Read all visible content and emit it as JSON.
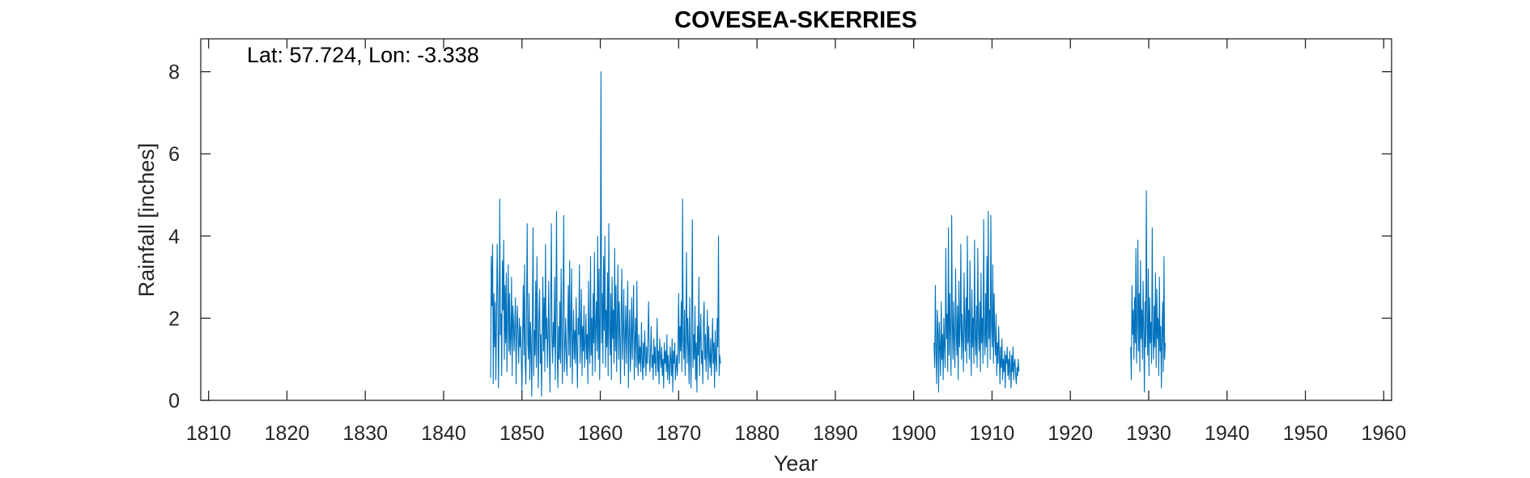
{
  "chart_data": {
    "type": "line",
    "title": "COVESEA-SKERRIES",
    "annotation": "Lat: 57.724, Lon: -3.338",
    "xlabel": "Year",
    "ylabel": "Rainfall [inches]",
    "xlim": [
      1809,
      1961
    ],
    "ylim": [
      0,
      8.8
    ],
    "xticks": [
      1810,
      1820,
      1830,
      1840,
      1850,
      1860,
      1870,
      1880,
      1890,
      1900,
      1910,
      1920,
      1930,
      1940,
      1950,
      1960
    ],
    "yticks": [
      0,
      2,
      4,
      6,
      8
    ],
    "grid": false,
    "legend": "none",
    "series": [
      {
        "color": "#0072BD",
        "segments": [
          {
            "x_start": 1846.0,
            "x_step": 0.0833333,
            "y": [
              0.55,
              3.5,
              2.3,
              3.8,
              0.4,
              2.6,
              1.3,
              2.4,
              0.5,
              1.9,
              3.8,
              2.5,
              0.3,
              1.8,
              4.9,
              1.6,
              2.1,
              0.6,
              3.4,
              2.2,
              3.9,
              1.0,
              2.8,
              1.4,
              3.1,
              0.7,
              2.0,
              3.3,
              1.2,
              2.6,
              1.1,
              1.5,
              3.0,
              0.6,
              2.3,
              1.9,
              1.2,
              1.9,
              2.5,
              0.4,
              1.7,
              2.3,
              1.5,
              0.9,
              2.0,
              1.3,
              1.8,
              1.0,
              0.2,
              1.6,
              2.8,
              1.1,
              3.3,
              0.9,
              0.4,
              2.2,
              4.3,
              1.4,
              1.0,
              2.6,
              0.5,
              1.9,
              1.3,
              0.1,
              2.3,
              4.2,
              0.6,
              1.7,
              1.1,
              2.9,
              0.8,
              3.5,
              1.5,
              0.3,
              2.0,
              2.7,
              0.9,
              1.6,
              0.1,
              1.4,
              3.0,
              1.2,
              2.5,
              0.7,
              3.8,
              1.5,
              2.0,
              0.8,
              1.6,
              2.9,
              1.1,
              0.2,
              2.1,
              4.3,
              1.6,
              0.9,
              1.9,
              1.3,
              3.0,
              0.5,
              2.2,
              4.6,
              1.2,
              0.3,
              1.8,
              1.0,
              2.4,
              0.9,
              3.2,
              1.5,
              0.4,
              2.6,
              4.5,
              0.7,
              1.3,
              2.0,
              1.0,
              0.6,
              1.7,
              2.8,
              1.1,
              3.4,
              0.8,
              1.9,
              3.2,
              0.4,
              1.4,
              2.2,
              1.0,
              1.7,
              0.9,
              2.5,
              1.3,
              0.3,
              2.0,
              1.6,
              3.3,
              0.9,
              1.5,
              2.7,
              0.6,
              1.8,
              1.2,
              2.3,
              0.8,
              1.4,
              2.1,
              1.0,
              1.6,
              0.4,
              2.9,
              1.3,
              0.9,
              3.5,
              1.1,
              2.0,
              0.6,
              2.6,
              1.4,
              3.6,
              0.7,
              1.8,
              2.4,
              1.2,
              4.0,
              1.0,
              3.2,
              0.5,
              2.1,
              8.0,
              1.4,
              2.6,
              0.9,
              3.5,
              1.7,
              4.0,
              0.8,
              2.2,
              1.3,
              3.1,
              0.6,
              4.3,
              1.8,
              1.1,
              2.6,
              0.5,
              3.0,
              1.5,
              2.2,
              0.9,
              3.7,
              1.2,
              2.8,
              0.7,
              1.9,
              3.3,
              1.0,
              2.4,
              1.5,
              0.4,
              2.1,
              3.2,
              1.0,
              1.7,
              2.7,
              0.6,
              1.5,
              2.3,
              0.9,
              1.9,
              2.9,
              0.3,
              1.6,
              2.2,
              0.7,
              1.3,
              2.5,
              1.0,
              1.8,
              2.8,
              0.5,
              1.4,
              2.0,
              0.8,
              2.9,
              1.1,
              0.6,
              1.6,
              0.9,
              1.3,
              0.7,
              1.9,
              1.0,
              0.5,
              1.4,
              0.8,
              1.7,
              1.1,
              0.6,
              1.3,
              0.9,
              1.6,
              2.4,
              1.0,
              0.7,
              1.2,
              1.8,
              0.8,
              1.1,
              0.5,
              1.5,
              0.9,
              1.3,
              0.6,
              1.0,
              2.0,
              0.7,
              1.2,
              0.4,
              1.5,
              1.1,
              0.8,
              1.3,
              0.6,
              1.0,
              0.3,
              1.4,
              0.9,
              1.2,
              0.7,
              1.6,
              0.5,
              1.1,
              0.8,
              0.4,
              1.3,
              1.0,
              0.6,
              1.5,
              0.2,
              1.2,
              0.9,
              1.4,
              0.5,
              0.8,
              1.1,
              0.6,
              1.3,
              2.6,
              0.9,
              1.8,
              1.2,
              2.4,
              0.7,
              4.9,
              1.5,
              1.0,
              2.2,
              0.6,
              1.7,
              3.6,
              0.9,
              2.0,
              1.3,
              0.4,
              2.5,
              1.1,
              0.3,
              1.9,
              4.4,
              0.8,
              1.6,
              1.0,
              2.3,
              0.5,
              1.4,
              0.2,
              1.8,
              1.1,
              3.0,
              0.6,
              1.5,
              2.1,
              0.9,
              1.2,
              0.4,
              1.9,
              2.4,
              1.0,
              1.6,
              0.7,
              1.3,
              2.2,
              0.5,
              1.8,
              1.1,
              0.8,
              1.5,
              0.6,
              1.2,
              2.0,
              0.9,
              1.4,
              0.3,
              1.7,
              1.0,
              0.7,
              2.0,
              1.3,
              4.0,
              0.6,
              1.1,
              0.9
            ]
          },
          {
            "x_start": 1902.6,
            "x_step": 0.0833333,
            "y": [
              1.4,
              0.8,
              2.8,
              1.2,
              0.4,
              2.2,
              1.7,
              0.2,
              1.9,
              1.3,
              0.6,
              2.4,
              1.0,
              1.6,
              0.5,
              2.0,
              1.3,
              0.8,
              3.7,
              1.5,
              2.1,
              0.7,
              4.2,
              1.1,
              2.6,
              1.6,
              0.6,
              4.5,
              1.9,
              1.0,
              2.4,
              1.4,
              0.8,
              3.2,
              1.7,
              1.1,
              2.3,
              0.5,
              2.9,
              1.3,
              1.8,
              3.8,
              1.0,
              2.1,
              1.5,
              0.7,
              3.1,
              1.8,
              1.2,
              2.5,
              0.9,
              4.0,
              1.4,
              2.2,
              1.0,
              3.4,
              1.6,
              0.6,
              2.7,
              1.3,
              2.0,
              0.9,
              3.9,
              1.5,
              1.1,
              2.3,
              0.8,
              3.7,
              1.7,
              1.2,
              2.4,
              0.7,
              3.1,
              1.4,
              2.0,
              0.9,
              4.4,
              1.6,
              1.1,
              2.6,
              1.3,
              3.5,
              0.8,
              4.6,
              1.5,
              2.2,
              1.0,
              4.5,
              1.8,
              1.3,
              3.3,
              0.9,
              2.6,
              1.5,
              1.1,
              2.1,
              0.6,
              1.4,
              0.9,
              1.8,
              1.1,
              0.4,
              1.3,
              0.8,
              1.5,
              0.5,
              1.0,
              0.7,
              1.2,
              0.3,
              1.1,
              0.9,
              1.3,
              0.6,
              1.0,
              0.5,
              1.2,
              0.8,
              0.3,
              1.1,
              0.7,
              1.3,
              0.5,
              0.9,
              1.0,
              0.6,
              0.4,
              0.8,
              0.6,
              1.0,
              0.7
            ]
          },
          {
            "x_start": 1927.7,
            "x_step": 0.0833333,
            "y": [
              1.3,
              0.5,
              2.8,
              1.6,
              2.2,
              1.0,
              2.5,
              1.4,
              3.7,
              0.9,
              1.8,
              3.9,
              1.2,
              2.6,
              0.7,
              3.4,
              1.5,
              2.2,
              1.0,
              2.9,
              1.7,
              0.2,
              2.4,
              1.3,
              5.1,
              1.9,
              1.1,
              3.2,
              0.6,
              2.5,
              1.4,
              1.9,
              0.9,
              4.2,
              1.6,
              1.0,
              2.3,
              1.3,
              3.1,
              0.8,
              2.7,
              1.5,
              2.0,
              0.6,
              3.0,
              1.2,
              1.8,
              0.3,
              1.6,
              2.4,
              0.7,
              3.5,
              1.0,
              1.4
            ]
          }
        ]
      }
    ]
  }
}
